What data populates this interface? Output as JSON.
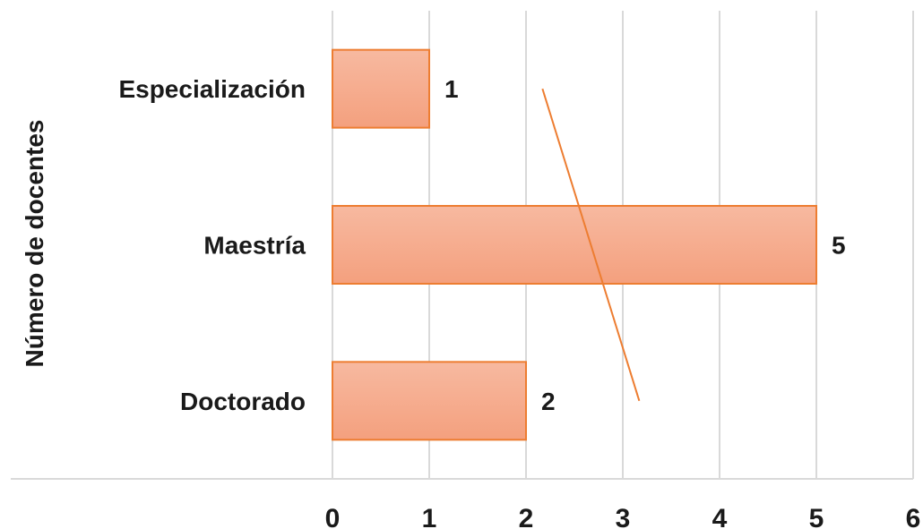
{
  "chart_data": {
    "type": "bar",
    "orientation": "horizontal",
    "categories": [
      "Especialización",
      "Maestría",
      "Doctorado"
    ],
    "values": [
      1,
      5,
      2
    ],
    "data_labels": [
      "1",
      "5",
      "2"
    ],
    "x_ticks": [
      "0",
      "1",
      "2",
      "3",
      "4",
      "5",
      "6"
    ],
    "xlim": [
      0,
      6
    ],
    "title": "",
    "xlabel": "",
    "ylabel": "Número de docentes",
    "grid": "vertical",
    "legend": "none",
    "bar_fill_top": "#f7b9a0",
    "bar_fill_bottom": "#f4a07e",
    "bar_stroke": "#ed7d31",
    "annotation_line_color": "#ed7d31",
    "annotation_line": {
      "x": [
        2.17,
        3.17
      ],
      "y": [
        "Especialización",
        "Doctorado"
      ]
    },
    "text_color": "#1a1a1a",
    "grid_color": "#d9d9d9"
  }
}
